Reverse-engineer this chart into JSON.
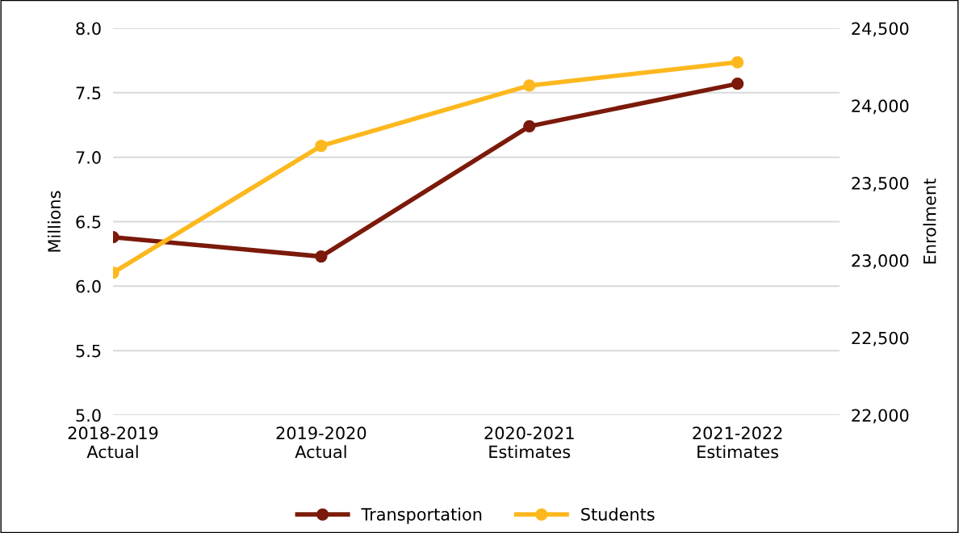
{
  "chart_data": {
    "type": "line",
    "categories": [
      "2018-2019\nActual",
      "2019-2020\nActual",
      "2020-2021\nEstimates",
      "2021-2022\nEstimates"
    ],
    "series": [
      {
        "name": "Transportation",
        "color": "#7b1a0a",
        "values": [
          6.38,
          6.23,
          7.24,
          7.57
        ]
      },
      {
        "name": "Students",
        "color": "#fdb81e",
        "axis": "y2",
        "values": [
          22920,
          23740,
          24130,
          24280
        ]
      }
    ],
    "ylabel": "Millions",
    "y2label": "Enrolment",
    "ylim": [
      5.0,
      8.0
    ],
    "yticks": [
      {
        "value": 5.0,
        "label": "5.0"
      },
      {
        "value": 5.5,
        "label": "5.5"
      },
      {
        "value": 6.0,
        "label": "6.0"
      },
      {
        "value": 6.5,
        "label": "6.5"
      },
      {
        "value": 7.0,
        "label": "7.0"
      },
      {
        "value": 7.5,
        "label": "7.5"
      },
      {
        "value": 8.0,
        "label": "8.0"
      }
    ],
    "y2lim": [
      22000,
      24500
    ],
    "y2ticks": [
      {
        "value": 22000,
        "label": "22,000"
      },
      {
        "value": 22500,
        "label": "22,500"
      },
      {
        "value": 23000,
        "label": "23,000"
      },
      {
        "value": 23500,
        "label": "23,500"
      },
      {
        "value": 24000,
        "label": "24,000"
      },
      {
        "value": 24500,
        "label": "24,500"
      }
    ],
    "grid": "y",
    "legend": "bottom",
    "marker": "circle",
    "line_style": "solid"
  }
}
